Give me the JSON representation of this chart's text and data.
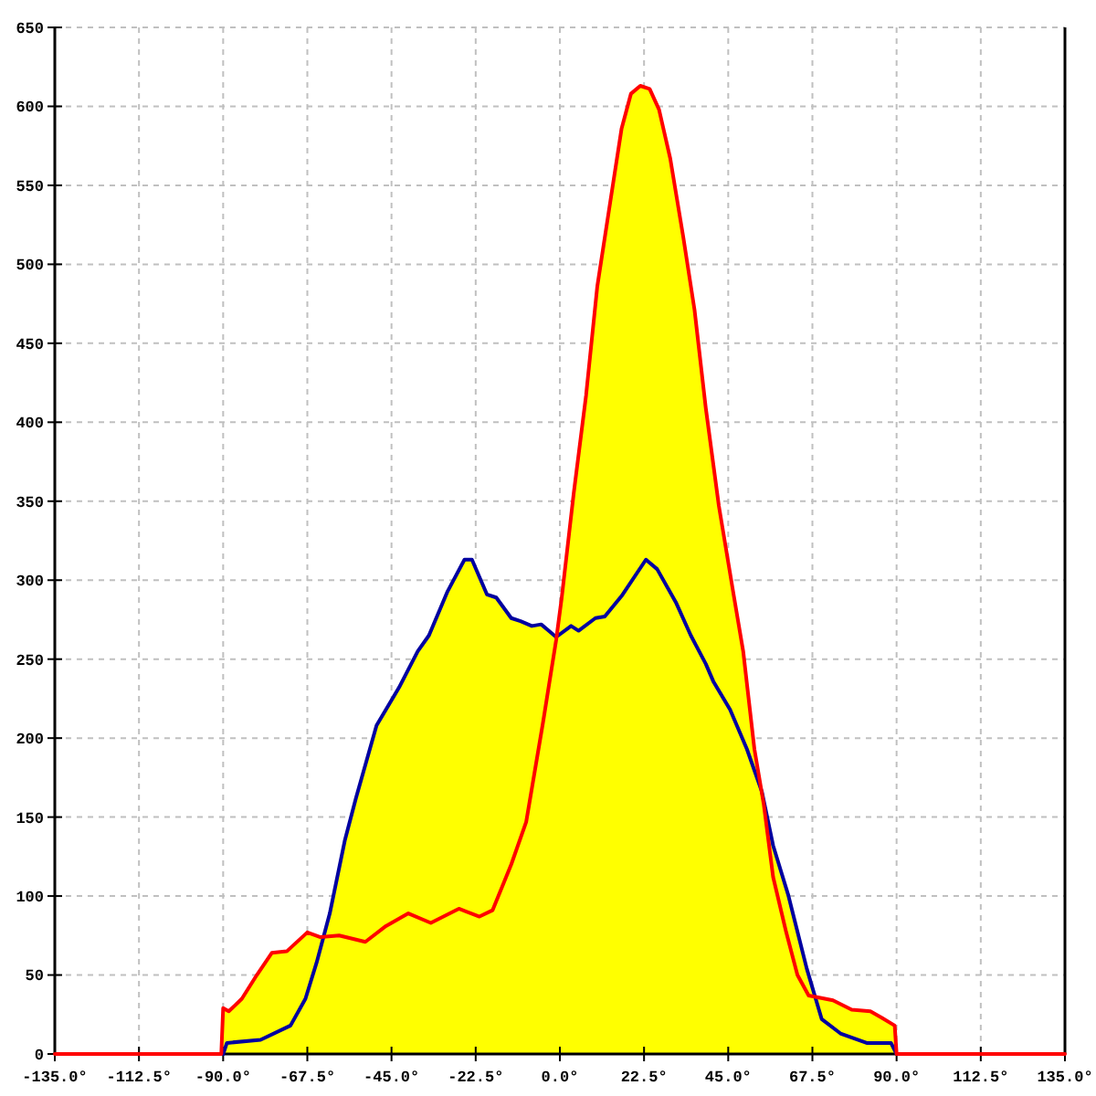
{
  "chart_data": {
    "type": "line",
    "xlim": [
      -135,
      135
    ],
    "ylim": [
      0,
      650
    ],
    "xticks": [
      {
        "value": -135,
        "label": "-135.0°"
      },
      {
        "value": -112.5,
        "label": "-112.5°"
      },
      {
        "value": -90,
        "label": "-90.0°"
      },
      {
        "value": -67.5,
        "label": "-67.5°"
      },
      {
        "value": -45,
        "label": "-45.0°"
      },
      {
        "value": -22.5,
        "label": "-22.5°"
      },
      {
        "value": 0,
        "label": "0.0°"
      },
      {
        "value": 22.5,
        "label": "22.5°"
      },
      {
        "value": 45,
        "label": "45.0°"
      },
      {
        "value": 67.5,
        "label": "67.5°"
      },
      {
        "value": 90,
        "label": "90.0°"
      },
      {
        "value": 112.5,
        "label": "112.5°"
      },
      {
        "value": 135,
        "label": "135.0°"
      }
    ],
    "yticks": [
      0,
      50,
      100,
      150,
      200,
      250,
      300,
      350,
      400,
      450,
      500,
      550,
      600,
      650
    ],
    "grid": true,
    "series": [
      {
        "type": "area",
        "color": "#ffff00",
        "x": [
          -90.5,
          -90,
          -88.5,
          -85,
          -81,
          -77,
          -73,
          -67.5,
          -64,
          -63.3,
          -61.5,
          -57.5,
          -54.5,
          -49,
          -43,
          -38,
          -35,
          -30,
          -25.5,
          -23.5,
          -19.5,
          -17,
          -13,
          -10.5,
          -7.5,
          -5,
          -3,
          -1,
          0.5,
          3.7,
          7,
          10,
          13.5,
          16.5,
          19,
          21.5,
          24,
          26.5,
          29.5,
          33,
          36,
          39,
          42.5,
          46.5,
          49,
          52,
          54,
          57,
          61,
          66,
          68.6,
          73,
          78,
          83,
          86,
          89.5,
          90
        ],
        "values": [
          0,
          29,
          27,
          35,
          50,
          64,
          65,
          77,
          74,
          75,
          89,
          135,
          162,
          208,
          232,
          255,
          265,
          293,
          313,
          313,
          291,
          289,
          276,
          274,
          271,
          272,
          268,
          264,
          289,
          355,
          417,
          486,
          540,
          586,
          608,
          613,
          611,
          598,
          567,
          517,
          471,
          409,
          347,
          290,
          255,
          193,
          166,
          132,
          101,
          54,
          36,
          34,
          28,
          27,
          23,
          18,
          0
        ]
      },
      {
        "color": "#0000a0",
        "x": [
          -90,
          -89,
          -80,
          -72,
          -68,
          -65,
          -61.5,
          -57.5,
          -54.5,
          -49,
          -43,
          -38,
          -35,
          -30,
          -25.5,
          -23.5,
          -19.5,
          -17,
          -13,
          -10.5,
          -7.5,
          -5,
          -3,
          -1,
          3,
          5,
          9.5,
          12,
          16.5,
          23,
          26,
          31,
          35,
          39,
          41,
          45.5,
          50,
          54,
          57,
          61,
          66,
          70,
          75,
          82,
          88.5,
          90
        ],
        "values": [
          0,
          7,
          9,
          18,
          35,
          58,
          89,
          135,
          162,
          208,
          232,
          255,
          265,
          293,
          313,
          313,
          291,
          289,
          276,
          274,
          271,
          272,
          268,
          264,
          271,
          268,
          276,
          277,
          290,
          313,
          307,
          286,
          265,
          247,
          236,
          218,
          193,
          166,
          132,
          101,
          54,
          22,
          13,
          7,
          7,
          0
        ]
      },
      {
        "color": "#ff0000",
        "x": [
          -135,
          -90.5,
          -90,
          -88.5,
          -85,
          -81,
          -77,
          -73,
          -67.5,
          -64,
          -59,
          -52,
          -46.5,
          -40.5,
          -34.5,
          -27,
          -21.5,
          -18,
          -13,
          -9,
          -4.5,
          -1,
          0.5,
          3.7,
          7,
          10,
          13.5,
          16.5,
          19,
          21.5,
          24,
          26.5,
          29.5,
          33,
          36,
          39,
          42.5,
          46.5,
          49,
          52,
          54.5,
          57,
          60.5,
          63.5,
          66.5,
          73,
          78,
          83,
          86,
          89.5,
          90,
          135
        ],
        "values": [
          0,
          0,
          29,
          27,
          35,
          50,
          64,
          65,
          77,
          74,
          75,
          71,
          81,
          89,
          83,
          92,
          87,
          91,
          120,
          147,
          210,
          262,
          289,
          355,
          417,
          486,
          540,
          586,
          608,
          613,
          611,
          598,
          567,
          517,
          471,
          409,
          347,
          290,
          255,
          193,
          158,
          112,
          77,
          50,
          37,
          34,
          28,
          27,
          23,
          18,
          0,
          0
        ]
      }
    ]
  }
}
